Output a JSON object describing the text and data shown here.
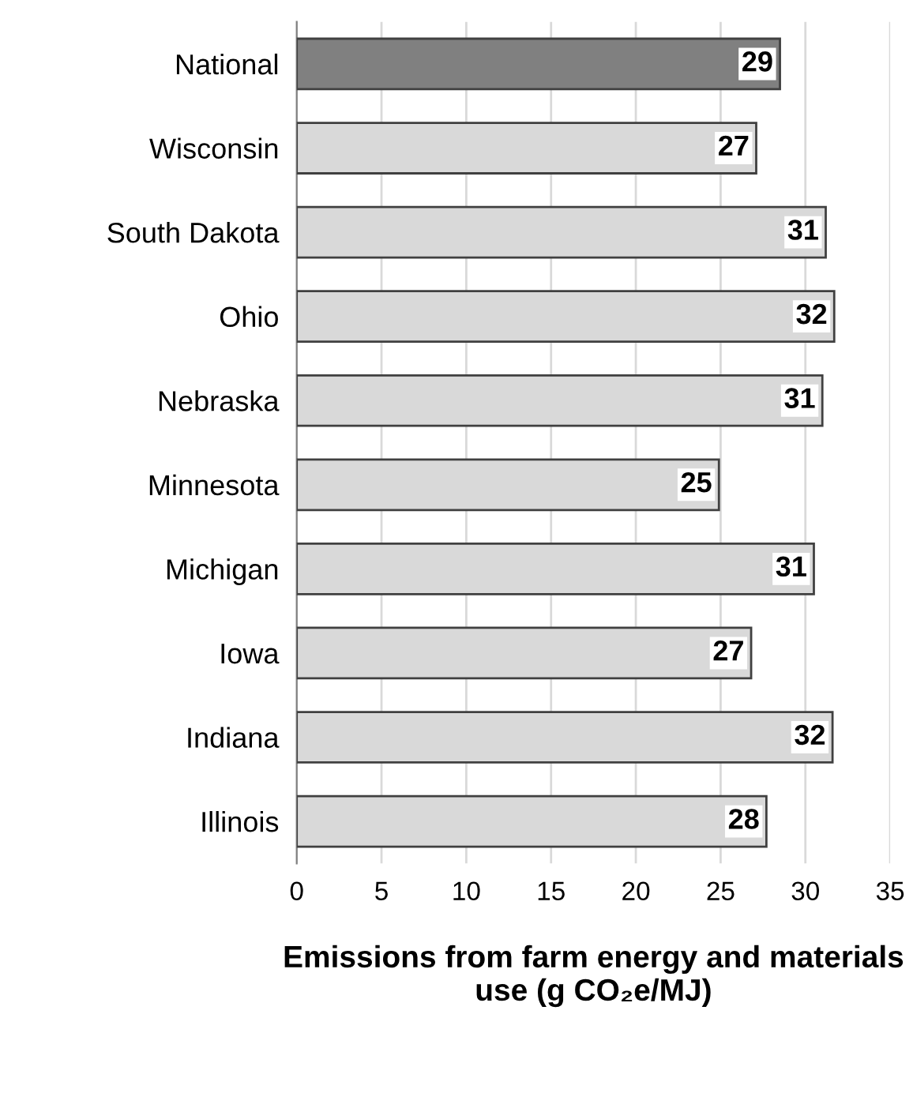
{
  "chart_data": {
    "type": "bar",
    "orientation": "horizontal",
    "categories": [
      "National",
      "Wisconsin",
      "South Dakota",
      "Ohio",
      "Nebraska",
      "Minnesota",
      "Michigan",
      "Iowa",
      "Indiana",
      "Illinois"
    ],
    "values": [
      28.5,
      27.1,
      31.2,
      31.7,
      31.0,
      24.9,
      30.5,
      26.8,
      31.6,
      27.7
    ],
    "value_labels": [
      "29",
      "27",
      "31",
      "32",
      "31",
      "25",
      "31",
      "27",
      "32",
      "28"
    ],
    "colors": [
      "#808080",
      "#d9d9d9",
      "#d9d9d9",
      "#d9d9d9",
      "#d9d9d9",
      "#d9d9d9",
      "#d9d9d9",
      "#d9d9d9",
      "#d9d9d9",
      "#d9d9d9"
    ],
    "xlabel": "Emissions from farm energy and materials use (g CO₂e/MJ)",
    "xlim": [
      0,
      35
    ],
    "xticks": [
      0,
      5,
      10,
      15,
      20,
      25,
      30,
      35
    ],
    "grid": "x"
  }
}
